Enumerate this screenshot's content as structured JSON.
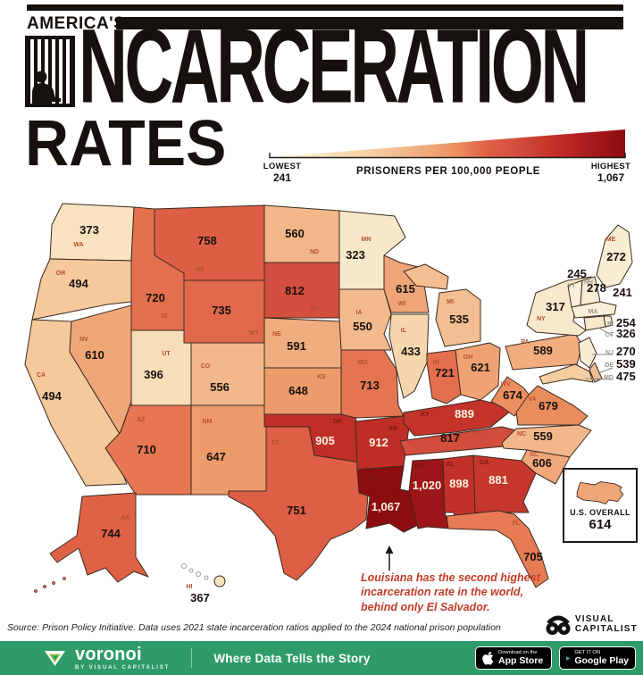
{
  "header": {
    "kicker": "AMERICA'S",
    "title": "INCARCERATION",
    "title_after_icon": "NCARCERATION",
    "subtitle": "RATES"
  },
  "legend": {
    "lowest_label": "LOWEST",
    "lowest_value": "241",
    "axis_label": "PRISONERS PER 100,000 PEOPLE",
    "highest_label": "HIGHEST",
    "highest_value": "1,067"
  },
  "overall": {
    "label": "U.S. OVERALL",
    "value": "614"
  },
  "annotation": {
    "text": "Louisiana has the second highest\nincarceration rate in the world,\nbehind only El Salvador."
  },
  "source": "Source: Prison Policy Initiative. Data uses 2021 state incarceration ratios applied to the 2024 national prison population",
  "brand": {
    "line1": "VISUAL",
    "line2": "CAPITALIST"
  },
  "footer": {
    "app_name": "voronoi",
    "app_byline": "BY VISUAL CAPITALIST",
    "tagline": "Where Data Tells the Story",
    "appstore": {
      "top": "Download on the",
      "bottom": "App Store"
    },
    "googleplay": {
      "top": "GET IT ON",
      "bottom": "Google Play"
    }
  },
  "colors": {
    "footer_green": "#2e9b69",
    "annotation_red": "#c23b27",
    "ink": "#17110d",
    "ramp": [
      [
        241,
        "#faf0da"
      ],
      [
        350,
        "#f8e6c6"
      ],
      [
        450,
        "#f6d4a8"
      ],
      [
        540,
        "#f3bd90"
      ],
      [
        600,
        "#f0aa7c"
      ],
      [
        650,
        "#ee9a6a"
      ],
      [
        690,
        "#ea8659"
      ],
      [
        720,
        "#e4704e"
      ],
      [
        750,
        "#de5f45"
      ],
      [
        800,
        "#d65242"
      ],
      [
        830,
        "#d04a3a"
      ],
      [
        870,
        "#c83b2f"
      ],
      [
        910,
        "#bf2d26"
      ],
      [
        960,
        "#b02120"
      ],
      [
        1010,
        "#a0171a"
      ],
      [
        1040,
        "#951114"
      ],
      [
        1067,
        "#8c0d10"
      ]
    ]
  },
  "chart_data": {
    "type": "choropleth",
    "title": "America's Incarceration Rates",
    "unit": "prisoners per 100,000 people",
    "min": 241,
    "max": 1067,
    "us_overall": 614,
    "states": [
      {
        "code": "WA",
        "value": 373
      },
      {
        "code": "OR",
        "value": 494
      },
      {
        "code": "CA",
        "value": 494
      },
      {
        "code": "NV",
        "value": 610
      },
      {
        "code": "ID",
        "value": 720
      },
      {
        "code": "MT",
        "value": 758
      },
      {
        "code": "WY",
        "value": 735
      },
      {
        "code": "UT",
        "value": 396
      },
      {
        "code": "CO",
        "value": 556
      },
      {
        "code": "AZ",
        "value": 710
      },
      {
        "code": "NM",
        "value": 647
      },
      {
        "code": "ND",
        "value": 560
      },
      {
        "code": "SD",
        "value": 812
      },
      {
        "code": "NE",
        "value": 591
      },
      {
        "code": "KS",
        "value": 648
      },
      {
        "code": "OK",
        "value": 905
      },
      {
        "code": "TX",
        "value": 751
      },
      {
        "code": "MN",
        "value": 323
      },
      {
        "code": "IA",
        "value": 550
      },
      {
        "code": "MO",
        "value": 713
      },
      {
        "code": "AR",
        "value": 912
      },
      {
        "code": "LA",
        "value": 1067
      },
      {
        "code": "WI",
        "value": 615
      },
      {
        "code": "IL",
        "value": 433
      },
      {
        "code": "MI",
        "value": 535
      },
      {
        "code": "IN",
        "value": 721
      },
      {
        "code": "OH",
        "value": 621
      },
      {
        "code": "KY",
        "value": 889
      },
      {
        "code": "TN",
        "value": 817
      },
      {
        "code": "MS",
        "value": 1020
      },
      {
        "code": "AL",
        "value": 898
      },
      {
        "code": "GA",
        "value": 881
      },
      {
        "code": "FL",
        "value": 705
      },
      {
        "code": "WV",
        "value": 674
      },
      {
        "code": "VA",
        "value": 679
      },
      {
        "code": "NC",
        "value": 559
      },
      {
        "code": "SC",
        "value": 606
      },
      {
        "code": "PA",
        "value": 589
      },
      {
        "code": "NY",
        "value": 317
      },
      {
        "code": "ME",
        "value": 272
      },
      {
        "code": "VT",
        "value": 245
      },
      {
        "code": "NH",
        "value": 278
      },
      {
        "code": "MA",
        "value": 241
      },
      {
        "code": "RI",
        "value": 254
      },
      {
        "code": "CT",
        "value": 326
      },
      {
        "code": "NJ",
        "value": 270
      },
      {
        "code": "DE",
        "value": 539
      },
      {
        "code": "MD",
        "value": 475
      },
      {
        "code": "AK",
        "value": 744
      },
      {
        "code": "HI",
        "value": 367
      }
    ]
  }
}
